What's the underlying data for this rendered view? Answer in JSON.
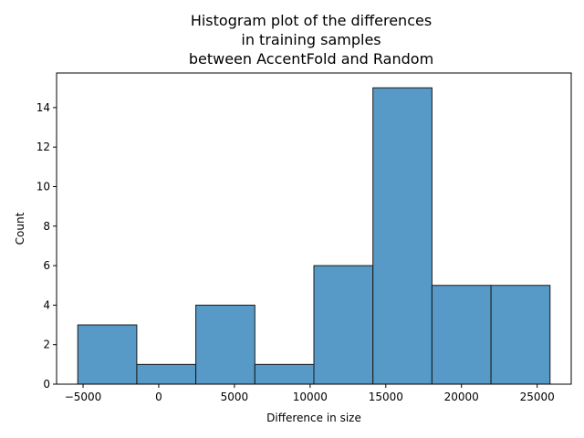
{
  "chart_data": {
    "type": "bar",
    "title_lines": [
      "Histogram plot of the differences",
      "in training samples",
      "between AccentFold and Random"
    ],
    "xlabel": "Difference in size",
    "ylabel": "Count",
    "xlim": [
      -6750,
      27250
    ],
    "ylim": [
      0,
      15.75
    ],
    "xticks": [
      -5000,
      0,
      5000,
      10000,
      15000,
      20000,
      25000
    ],
    "xtick_labels": [
      "−5000",
      "0",
      "5000",
      "10000",
      "15000",
      "20000",
      "25000"
    ],
    "yticks": [
      0,
      2,
      4,
      6,
      8,
      10,
      12,
      14
    ],
    "yticks_labels": [
      "0",
      "2",
      "4",
      "6",
      "8",
      "10",
      "12",
      "14"
    ],
    "bins": [
      {
        "start": -5350,
        "end": -1450,
        "count": 3
      },
      {
        "start": -1450,
        "end": 2450,
        "count": 1
      },
      {
        "start": 2450,
        "end": 6350,
        "count": 4
      },
      {
        "start": 6350,
        "end": 10250,
        "count": 1
      },
      {
        "start": 10250,
        "end": 14150,
        "count": 6
      },
      {
        "start": 14150,
        "end": 18050,
        "count": 15
      },
      {
        "start": 18050,
        "end": 21950,
        "count": 5
      },
      {
        "start": 21950,
        "end": 25850,
        "count": 5
      }
    ],
    "bar_color": "#5799c7",
    "edge_color": "#1a1a1a",
    "grid": false,
    "legend": "none"
  }
}
